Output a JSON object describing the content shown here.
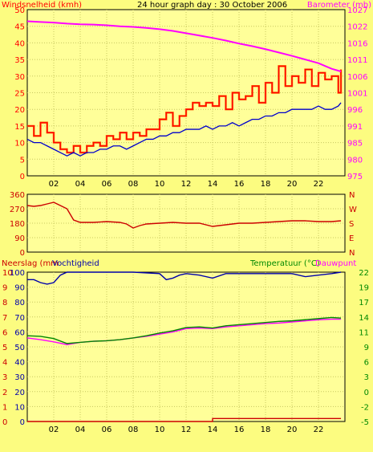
{
  "title": "24 hour graph day : 30 October 2006",
  "chart_data": [
    {
      "type": "line",
      "panel": "wind-pressure",
      "title": "24 hour graph day : 30 October 2006",
      "ylabel_left": "Windsnelheid (kmh)",
      "ylabel_right": "Barometer (mb)",
      "ylim_left": [
        0,
        50
      ],
      "ylim_right": [
        975,
        1025
      ],
      "yticks_left": [
        "0",
        "5",
        "10",
        "15",
        "20",
        "25",
        "30",
        "35",
        "40",
        "45",
        "50"
      ],
      "yticks_right": [
        "975",
        "980",
        "985",
        "991",
        "996",
        "1001",
        "1006",
        "1011",
        "1016",
        "1022",
        "1027"
      ],
      "xlim": [
        0,
        24
      ],
      "xticks": [
        "02",
        "04",
        "06",
        "08",
        "10",
        "12",
        "14",
        "16",
        "18",
        "20",
        "22"
      ],
      "grid": true,
      "colors": {
        "gust": "#ff0000",
        "gust_light": "#ff6600",
        "average": "#0000cc",
        "barometer": "#ff00ff"
      },
      "series": [
        {
          "key": "barometer",
          "axis": "right",
          "x": [
            0,
            1,
            2,
            3,
            4,
            5,
            6,
            7,
            8,
            9,
            10,
            11,
            12,
            13,
            14,
            15,
            16,
            17,
            18,
            19,
            20,
            21,
            22,
            23,
            23.7
          ],
          "values": [
            1021.5,
            1021.3,
            1021.1,
            1020.8,
            1020.6,
            1020.5,
            1020.3,
            1020.0,
            1019.8,
            1019.5,
            1019.1,
            1018.6,
            1017.9,
            1017.2,
            1016.5,
            1015.7,
            1014.8,
            1014.0,
            1013.1,
            1012.1,
            1011.1,
            1010.0,
            1008.9,
            1007.2,
            1006.4
          ]
        },
        {
          "key": "gust",
          "axis": "left",
          "x": [
            0,
            0.5,
            1,
            1.5,
            2,
            2.5,
            3,
            3.5,
            4,
            4.5,
            5,
            5.5,
            6,
            6.5,
            7,
            7.5,
            8,
            8.5,
            9,
            9.5,
            10,
            10.5,
            11,
            11.5,
            12,
            12.5,
            13,
            13.5,
            14,
            14.5,
            15,
            15.5,
            16,
            16.5,
            17,
            17.5,
            18,
            18.5,
            19,
            19.5,
            20,
            20.5,
            21,
            21.5,
            22,
            22.5,
            23,
            23.5,
            23.7
          ],
          "values": [
            15,
            12,
            16,
            13,
            10,
            8,
            7,
            9,
            7,
            9,
            10,
            9,
            12,
            11,
            13,
            11,
            13,
            12,
            14,
            14,
            17,
            19,
            15,
            18,
            20,
            22,
            21,
            22,
            21,
            24,
            20,
            25,
            23,
            24,
            27,
            22,
            28,
            25,
            33,
            27,
            30,
            28,
            32,
            27,
            31,
            29,
            30,
            25,
            32
          ]
        },
        {
          "key": "average",
          "axis": "left",
          "x": [
            0,
            0.5,
            1,
            1.5,
            2,
            2.5,
            3,
            3.5,
            4,
            4.5,
            5,
            5.5,
            6,
            6.5,
            7,
            7.5,
            8,
            8.5,
            9,
            9.5,
            10,
            10.5,
            11,
            11.5,
            12,
            12.5,
            13,
            13.5,
            14,
            14.5,
            15,
            15.5,
            16,
            16.5,
            17,
            17.5,
            18,
            18.5,
            19,
            19.5,
            20,
            20.5,
            21,
            21.5,
            22,
            22.5,
            23,
            23.5,
            23.7
          ],
          "values": [
            11,
            10,
            10,
            9,
            8,
            7,
            6,
            7,
            6,
            7,
            7,
            8,
            8,
            9,
            9,
            8,
            9,
            10,
            11,
            11,
            12,
            12,
            13,
            13,
            14,
            14,
            14,
            15,
            14,
            15,
            15,
            16,
            15,
            16,
            17,
            17,
            18,
            18,
            19,
            19,
            20,
            20,
            20,
            20,
            21,
            20,
            20,
            21,
            22
          ]
        }
      ]
    },
    {
      "type": "line",
      "panel": "wind-direction",
      "yticks_left": [
        "0",
        "90",
        "180",
        "270",
        "360"
      ],
      "ylim": [
        0,
        360
      ],
      "compass_labels": [
        "N",
        "W",
        "S",
        "E",
        "N"
      ],
      "xlim": [
        0,
        24
      ],
      "grid": true,
      "colors": {
        "direction": "#cc0000"
      },
      "series": [
        {
          "key": "direction",
          "x": [
            0,
            0.5,
            1,
            1.5,
            2,
            2.5,
            3,
            3.5,
            4,
            5,
            6,
            7,
            7.5,
            8,
            8.5,
            9,
            10,
            11,
            12,
            13,
            14,
            15,
            16,
            17,
            18,
            19,
            20,
            21,
            22,
            23,
            23.7
          ],
          "values": [
            290,
            285,
            290,
            300,
            310,
            290,
            270,
            200,
            185,
            185,
            190,
            185,
            175,
            150,
            165,
            175,
            180,
            185,
            180,
            180,
            160,
            170,
            180,
            180,
            185,
            190,
            195,
            195,
            190,
            190,
            195
          ]
        }
      ]
    },
    {
      "type": "line",
      "panel": "rain-humidity-temperature",
      "ylabel_left_rain": "Neerslag (mm",
      "ylabel_left_humidity": "Vochtigheid",
      "ylabel_right_temperature": "Temperatuur (°C)",
      "ylabel_right_dewpoint": "Dauwpunt",
      "yticks_rain": [
        "0",
        "1",
        "2",
        "3",
        "4",
        "5",
        "6",
        "7",
        "8",
        "9",
        "10"
      ],
      "yticks_humidity": [
        "0",
        "10",
        "20",
        "30",
        "40",
        "50",
        "60",
        "70",
        "80",
        "90",
        "100"
      ],
      "yticks_temperature": [
        "-5",
        "-2",
        "0",
        "3",
        "6",
        "9",
        "11",
        "14",
        "17",
        "19",
        "22"
      ],
      "ylim_humidity": [
        0,
        100
      ],
      "ylim_temperature": [
        -5,
        22
      ],
      "xlim": [
        0,
        24
      ],
      "xticks": [
        "02",
        "04",
        "06",
        "08",
        "10",
        "12",
        "14",
        "16",
        "18",
        "20",
        "22"
      ],
      "grid": true,
      "colors": {
        "humidity": "#0000aa",
        "temperature": "#008800",
        "dewpoint": "#ff00ff",
        "rain": "#cc0000"
      },
      "series": [
        {
          "key": "humidity",
          "x": [
            0,
            0.5,
            1,
            1.5,
            2,
            2.5,
            3,
            4,
            5,
            6,
            8,
            10,
            10.5,
            11,
            11.5,
            12,
            13,
            14,
            15,
            16,
            18,
            20,
            21,
            22,
            23,
            23.7
          ],
          "values": [
            95,
            95,
            93,
            92,
            93,
            98,
            100,
            100,
            100,
            100,
            100,
            99,
            95,
            96,
            98,
            99,
            98,
            96,
            99,
            99,
            99,
            99,
            97,
            98,
            99,
            100
          ]
        },
        {
          "key": "temperature",
          "x": [
            0,
            1,
            2,
            3,
            4,
            5,
            6,
            7,
            8,
            9,
            10,
            11,
            12,
            13,
            14,
            15,
            16,
            17,
            18,
            19,
            20,
            21,
            22,
            23,
            23.7
          ],
          "values": [
            10.5,
            10.4,
            10.0,
            9.1,
            9.3,
            9.5,
            9.6,
            9.8,
            10.1,
            10.5,
            11.0,
            11.4,
            12.0,
            12.1,
            11.9,
            12.3,
            12.5,
            12.7,
            12.9,
            13.1,
            13.2,
            13.4,
            13.6,
            13.8,
            13.7
          ]
        },
        {
          "key": "dewpoint",
          "x": [
            0,
            1,
            2,
            3,
            4,
            5,
            6,
            7,
            8,
            9,
            10,
            11,
            12,
            13,
            14,
            15,
            16,
            17,
            18,
            19,
            20,
            21,
            22,
            23,
            23.7
          ],
          "values": [
            10.1,
            9.8,
            9.4,
            8.9,
            9.3,
            9.5,
            9.6,
            9.8,
            10.1,
            10.4,
            10.8,
            11.2,
            11.8,
            11.9,
            11.8,
            12.1,
            12.3,
            12.5,
            12.7,
            12.8,
            13.0,
            13.2,
            13.4,
            13.5,
            13.5
          ]
        },
        {
          "key": "rain",
          "x": [
            0,
            13.8,
            14,
            23.6,
            23.7
          ],
          "values": [
            0,
            0,
            0.2,
            0.2,
            0.2
          ]
        }
      ]
    }
  ]
}
